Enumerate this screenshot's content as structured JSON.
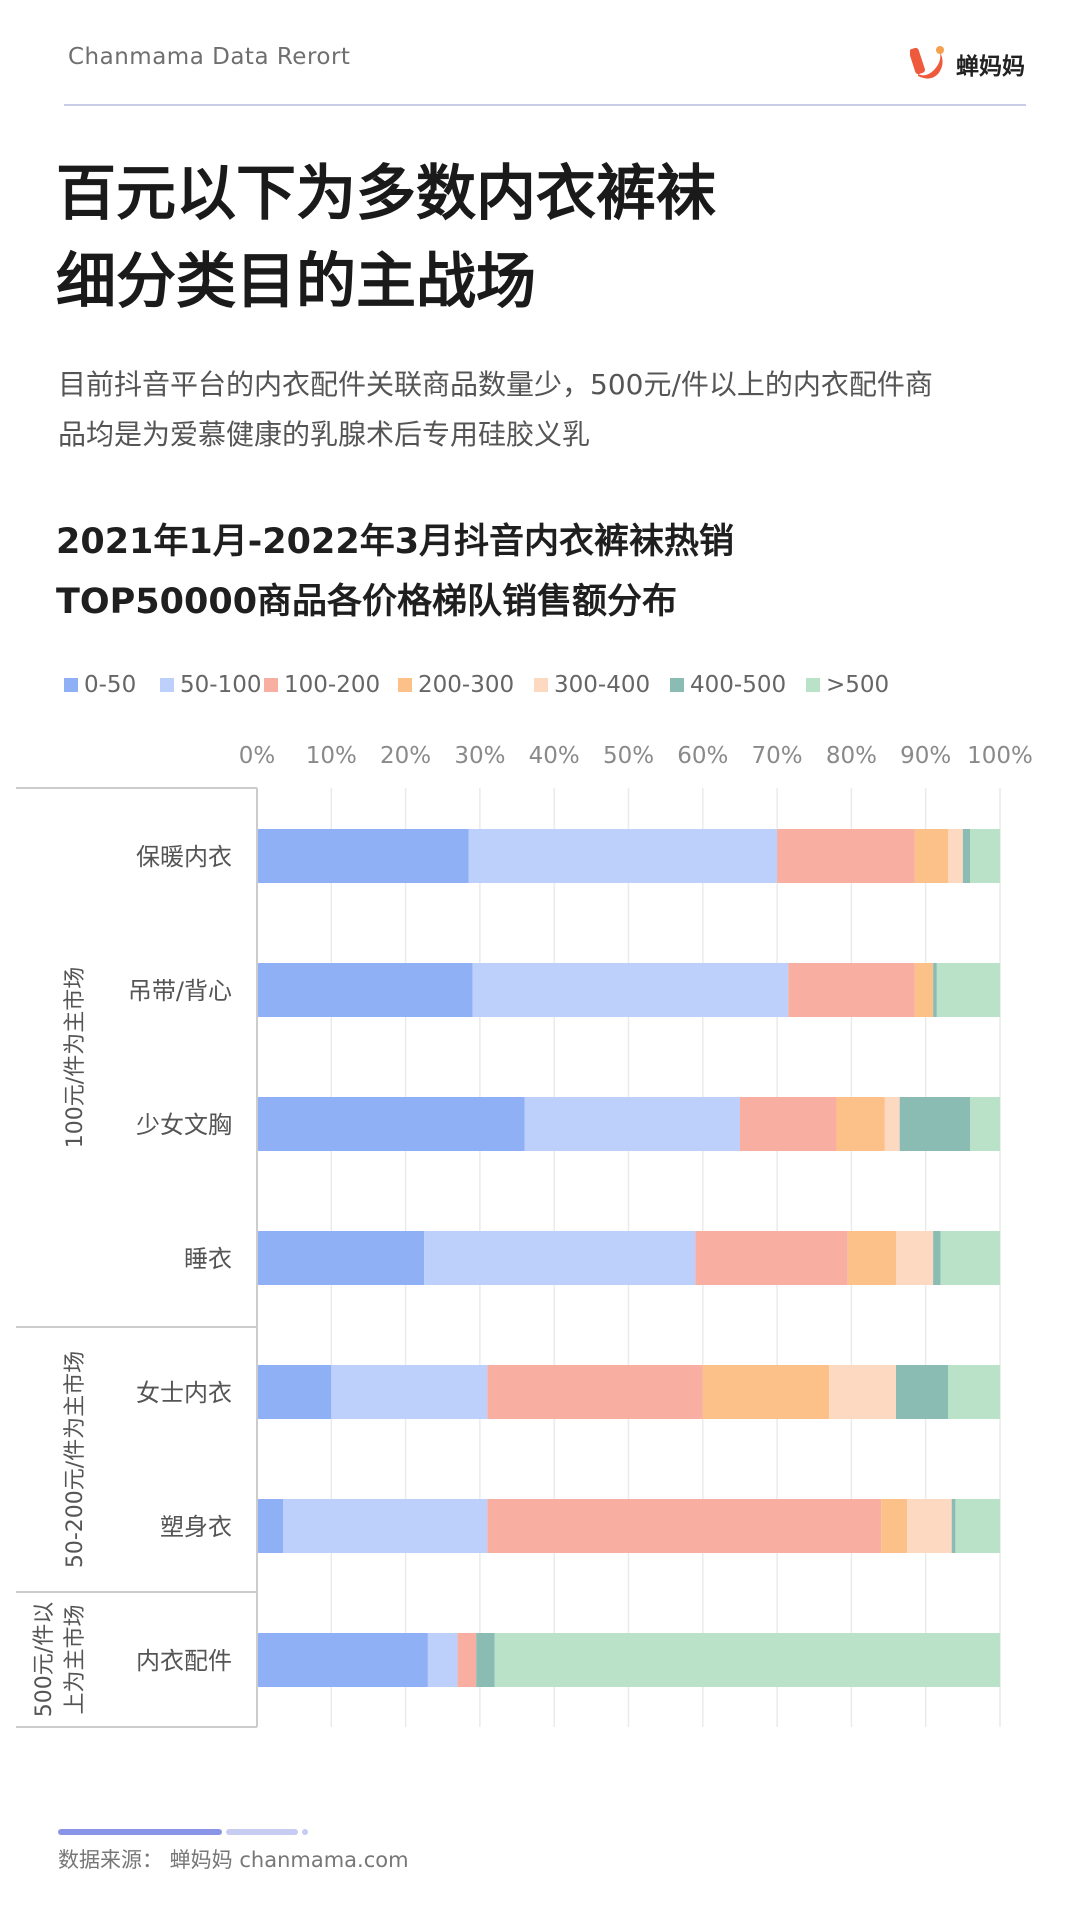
{
  "header": {
    "report_name": "Chanmama Data Rerort",
    "logo_text": "蝉妈妈"
  },
  "title": {
    "line1": "百元以下为多数内衣裤袜",
    "line2": "细分类目的主战场"
  },
  "subtitle": {
    "line1": "目前抖音平台的内衣配件关联商品数量少，500元/件以上的内衣配件商",
    "line2": "品均是为爱慕健康的乳腺术后专用硅胶义乳"
  },
  "colors": {
    "brand": "#ee5a3b",
    "header_rule": "#c9cce8",
    "footer_bar_dark": "#8b95e8",
    "footer_bar_light": "#c7ccf2"
  },
  "chart_data": {
    "type": "bar",
    "orientation": "horizontal",
    "stacked": true,
    "title": "2021年1月-2022年3月抖音内衣裤袜热销TOP50000商品各价格梯队销售额分布",
    "title_lines": [
      "2021年1月-2022年3月抖音内衣裤袜热销",
      "TOP50000商品各价格梯队销售额分布"
    ],
    "xlim": [
      0,
      100
    ],
    "x_ticks": [
      "0%",
      "10%",
      "20%",
      "30%",
      "40%",
      "50%",
      "60%",
      "70%",
      "80%",
      "90%",
      "100%"
    ],
    "grid": true,
    "legend_position": "top-left",
    "categories": [
      "保暖内衣",
      "吊带/背心",
      "少女文胸",
      "睡衣",
      "女士内衣",
      "塑身衣",
      "内衣配件"
    ],
    "groups": [
      {
        "label": "100元/件为主市场",
        "categories": [
          "保暖内衣",
          "吊带/背心",
          "少女文胸",
          "睡衣"
        ]
      },
      {
        "label": "50-200元/件为主市场",
        "categories": [
          "女士内衣",
          "塑身衣"
        ]
      },
      {
        "label_lines": [
          "500元/件以",
          "上为主市场"
        ],
        "categories": [
          "内衣配件"
        ]
      }
    ],
    "series": [
      {
        "name": "0-50",
        "color": "#8fb0f5",
        "values": [
          28.5,
          29,
          36,
          22.5,
          10,
          3.5,
          23
        ]
      },
      {
        "name": "50-100",
        "color": "#bdd0fb",
        "values": [
          41.5,
          42.5,
          29,
          36.5,
          21,
          27.5,
          4
        ]
      },
      {
        "name": "100-200",
        "color": "#f9aea2",
        "values": [
          18.5,
          17,
          13,
          20.5,
          29,
          53,
          2.5
        ]
      },
      {
        "name": "200-300",
        "color": "#fbc189",
        "values": [
          4.5,
          2.5,
          6.5,
          6.5,
          17,
          3.5,
          0
        ]
      },
      {
        "name": "300-400",
        "color": "#fdd9c2",
        "values": [
          2,
          0,
          2,
          5,
          9,
          6,
          0
        ]
      },
      {
        "name": "400-500",
        "color": "#8bbcb3",
        "values": [
          1,
          0.5,
          9.5,
          1,
          7,
          0.5,
          2.5
        ]
      },
      {
        "name": ">500",
        "color": "#b9e2c8",
        "values": [
          4,
          8.5,
          4,
          8,
          7,
          6,
          68
        ]
      }
    ]
  },
  "footer": {
    "source": "数据来源：  蝉妈妈 chanmama.com"
  }
}
